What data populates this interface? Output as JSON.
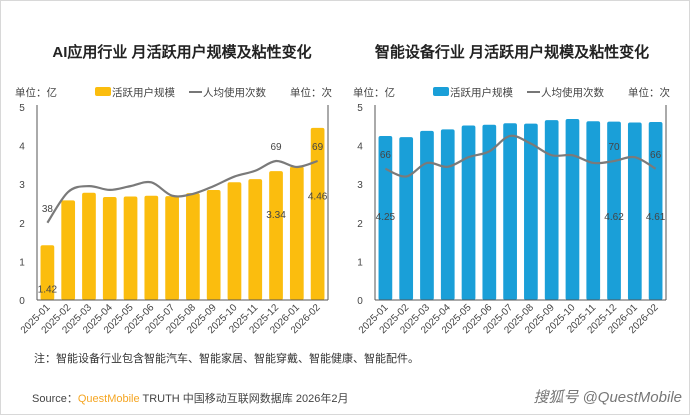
{
  "chart_data": [
    {
      "type": "bar+line",
      "title": "AI应用行业 月活跃用户规模及粘性变化",
      "ylabel_left": "单位：亿",
      "ylabel_right": "单位：次",
      "legend": [
        "活跃用户规模",
        "人均使用次数"
      ],
      "categories": [
        "2025-01",
        "2025-02",
        "2025-03",
        "2025-04",
        "2025-05",
        "2025-06",
        "2025-07",
        "2025-08",
        "2025-09",
        "2025-10",
        "2025-11",
        "2025-12",
        "2026-01",
        "2026-02"
      ],
      "ylim": [
        0,
        5
      ],
      "yticks": [
        "0",
        "1",
        "2",
        "3",
        "4",
        "5"
      ],
      "y2lim": [
        -0.75,
        96.1
      ],
      "bar_color": "#fbbd0e",
      "series": [
        {
          "name": "活跃用户规模",
          "type": "bar",
          "values": [
            1.42,
            2.58,
            2.78,
            2.67,
            2.68,
            2.7,
            2.69,
            2.77,
            2.85,
            3.05,
            3.13,
            3.34,
            3.46,
            4.46
          ]
        },
        {
          "name": "人均使用次数",
          "type": "line",
          "values": [
            38,
            53.5,
            56.4,
            54.5,
            56.4,
            58.3,
            51.6,
            52.5,
            56.4,
            61.2,
            64.1,
            69,
            66,
            69
          ]
        }
      ],
      "bar_labels": {
        "0": "1.42",
        "11": "3.34",
        "13": "4.46"
      },
      "line_labels": {
        "0": "38",
        "11": "69",
        "13": "69"
      }
    },
    {
      "type": "bar+line",
      "title": "智能设备行业 月活跃用户规模及粘性变化",
      "ylabel_left": "单位：亿",
      "ylabel_right": "单位：次",
      "legend": [
        "活跃用户规模",
        "人均使用次数"
      ],
      "categories": [
        "2025-01",
        "2025-02",
        "2025-03",
        "2025-04",
        "2025-05",
        "2025-06",
        "2025-07",
        "2025-08",
        "2025-09",
        "2025-10",
        "2025-11",
        "2025-12",
        "2026-01",
        "2026-02"
      ],
      "ylim": [
        0,
        5
      ],
      "yticks": [
        "0",
        "1",
        "2",
        "3",
        "4",
        "5"
      ],
      "y2lim": [
        -2,
        98
      ],
      "bar_color": "#1a9fd8",
      "series": [
        {
          "name": "活跃用户规模",
          "type": "bar",
          "values": [
            4.25,
            4.22,
            4.38,
            4.42,
            4.52,
            4.54,
            4.58,
            4.57,
            4.66,
            4.69,
            4.63,
            4.62,
            4.6,
            4.61
          ]
        },
        {
          "name": "人均使用次数",
          "type": "line",
          "values": [
            66,
            62,
            69,
            67,
            72,
            75,
            83,
            79,
            73,
            73,
            69,
            70,
            72,
            66
          ]
        }
      ],
      "bar_labels": {
        "0": "4.25",
        "11": "4.62",
        "13": "4.61"
      },
      "line_labels": {
        "0": "66",
        "11": "70",
        "13": "66"
      }
    }
  ],
  "footer": {
    "note": "注：智能设备行业包含智能汽车、智能家居、智能穿戴、智能健康、智能配件。",
    "source_prefix": "Source：",
    "source_brand": "QuestMobile",
    "source_rest": " TRUTH 中国移动互联网数据库 2026年2月",
    "watermark": "搜狐号 @QuestMobile"
  }
}
